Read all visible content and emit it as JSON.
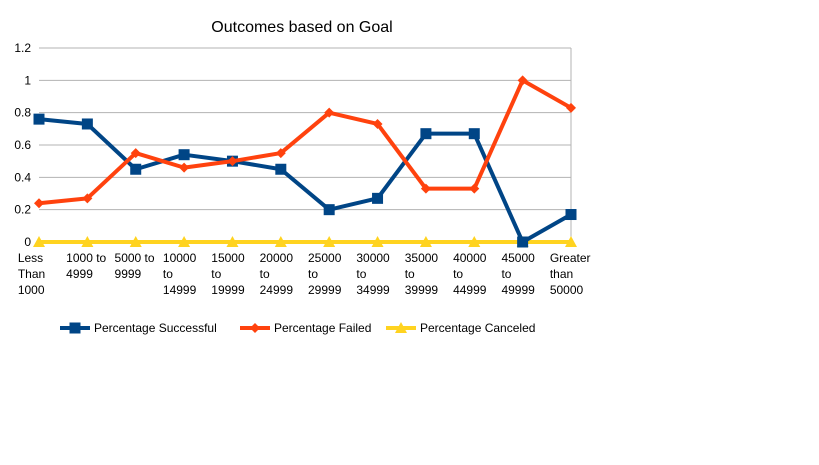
{
  "chart_data": {
    "type": "line",
    "title": "Outcomes based on Goal",
    "xlabel": "",
    "ylabel": "",
    "ylim": [
      0,
      1.2
    ],
    "yticks": [
      "0",
      "0.2",
      "0.4",
      "0.6",
      "0.8",
      "1",
      "1.2"
    ],
    "grid": true,
    "legend_position": "bottom",
    "categories": [
      "Less Than 1000",
      "1000 to 4999",
      "5000 to 9999",
      "10000 to 14999",
      "15000 to 19999",
      "20000 to 24999",
      "25000 to 29999",
      "30000 to 34999",
      "35000 to 39999",
      "40000 to 44999",
      "45000 to 49999",
      "Greater than 50000"
    ],
    "category_label_lines": [
      [
        "Less",
        "Than",
        "1000"
      ],
      [
        "1000 to",
        "4999"
      ],
      [
        "5000 to",
        "9999"
      ],
      [
        "10000",
        "to",
        "14999"
      ],
      [
        "15000",
        "to",
        "19999"
      ],
      [
        "20000",
        "to",
        "24999"
      ],
      [
        "25000",
        "to",
        "29999"
      ],
      [
        "30000",
        "to",
        "34999"
      ],
      [
        "35000",
        "to",
        "39999"
      ],
      [
        "40000",
        "to",
        "44999"
      ],
      [
        "45000",
        "to",
        "49999"
      ],
      [
        "Greater",
        "than",
        "50000"
      ]
    ],
    "series": [
      {
        "name": "Percentage Successful",
        "color": "#004586",
        "marker": "square",
        "values": [
          0.76,
          0.73,
          0.45,
          0.54,
          0.5,
          0.45,
          0.2,
          0.27,
          0.67,
          0.67,
          0.0,
          0.17
        ]
      },
      {
        "name": "Percentage Failed",
        "color": "#ff420e",
        "marker": "diamond",
        "values": [
          0.24,
          0.27,
          0.55,
          0.46,
          0.5,
          0.55,
          0.8,
          0.73,
          0.33,
          0.33,
          1.0,
          0.83
        ]
      },
      {
        "name": "Percentage Canceled",
        "color": "#ffd320",
        "marker": "triangle",
        "values": [
          0,
          0,
          0,
          0,
          0,
          0,
          0,
          0,
          0,
          0,
          0,
          0
        ]
      }
    ]
  }
}
